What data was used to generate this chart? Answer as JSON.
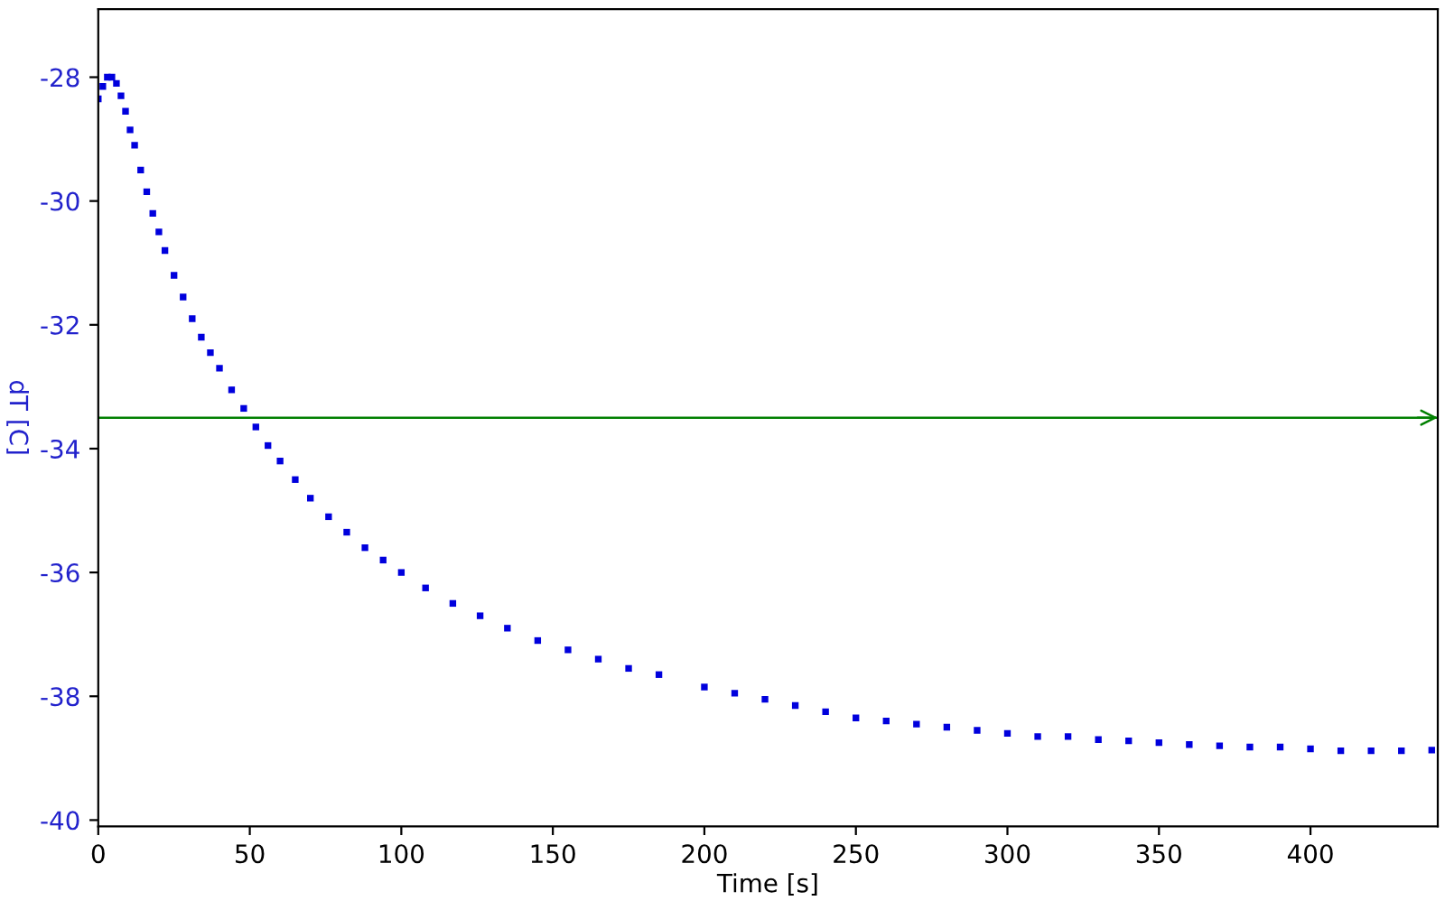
{
  "chart_data": {
    "type": "scatter",
    "xlabel": "Time [s]",
    "ylabel": "dT [C]",
    "xlim": [
      0,
      442
    ],
    "ylim": [
      -40.1,
      -26.9
    ],
    "xticks": [
      0,
      50,
      100,
      150,
      200,
      250,
      300,
      350,
      400
    ],
    "yticks": [
      -40,
      -38,
      -36,
      -34,
      -32,
      -30,
      -28
    ],
    "marker": "square",
    "grid": false,
    "series": [
      {
        "color": "#0000dd",
        "x": [
          0,
          1.5,
          3,
          4.5,
          6,
          7.5,
          9,
          10.5,
          12,
          14,
          16,
          18,
          20,
          22,
          25,
          28,
          31,
          34,
          37,
          40,
          44,
          48,
          52,
          56,
          60,
          65,
          70,
          76,
          82,
          88,
          94,
          100,
          108,
          117,
          126,
          135,
          145,
          155,
          165,
          175,
          185,
          200,
          210,
          220,
          230,
          240,
          250,
          260,
          270,
          280,
          290,
          300,
          310,
          320,
          330,
          340,
          350,
          360,
          370,
          380,
          390,
          400,
          410,
          420,
          430,
          440
        ],
        "values": [
          -28.35,
          -28.15,
          -28.0,
          -28.0,
          -28.1,
          -28.3,
          -28.55,
          -28.85,
          -29.1,
          -29.5,
          -29.85,
          -30.2,
          -30.5,
          -30.8,
          -31.2,
          -31.55,
          -31.9,
          -32.2,
          -32.45,
          -32.7,
          -33.05,
          -33.35,
          -33.65,
          -33.95,
          -34.2,
          -34.5,
          -34.8,
          -35.1,
          -35.35,
          -35.6,
          -35.8,
          -36.0,
          -36.25,
          -36.5,
          -36.7,
          -36.9,
          -37.1,
          -37.25,
          -37.4,
          -37.55,
          -37.65,
          -37.85,
          -37.95,
          -38.05,
          -38.15,
          -38.25,
          -38.35,
          -38.4,
          -38.45,
          -38.5,
          -38.55,
          -38.6,
          -38.65,
          -38.65,
          -38.7,
          -38.72,
          -38.75,
          -38.78,
          -38.8,
          -38.82,
          -38.82,
          -38.85,
          -38.88,
          -38.88,
          -38.88,
          -38.87
        ]
      }
    ],
    "ref_lines": [
      {
        "axis": "y",
        "value": -33.5,
        "label": null,
        "color": "#008000",
        "line_style": "solid"
      }
    ]
  }
}
